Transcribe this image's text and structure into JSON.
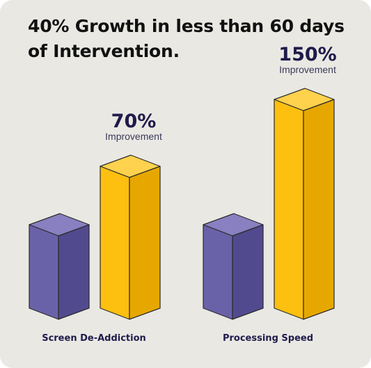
{
  "title": "40% Growth in less than 60 days of Intervention.",
  "chart_data": {
    "type": "bar",
    "title": "40% Growth in less than 60 days of Intervention.",
    "categories": [
      "Screen De-Addiction",
      "Processing Speed"
    ],
    "series": [
      {
        "values": [
          100,
          100
        ]
      },
      {
        "values": [
          170,
          250
        ]
      }
    ],
    "annotations": [
      {
        "category": "Screen De-Addiction",
        "value_label": "70%",
        "text": "Improvement"
      },
      {
        "category": "Processing Speed",
        "value_label": "150%",
        "text": "Improvement"
      }
    ],
    "xlabel": "",
    "ylabel": "",
    "grid": false,
    "colors": {
      "baseline": "#6a62a8",
      "baseline_top": "#8880c0",
      "baseline_side": "#524a8e",
      "improved": "#fdbf10",
      "improved_top": "#ffd24d",
      "improved_side": "#e6a800",
      "edge": "#2b2b2b"
    }
  }
}
